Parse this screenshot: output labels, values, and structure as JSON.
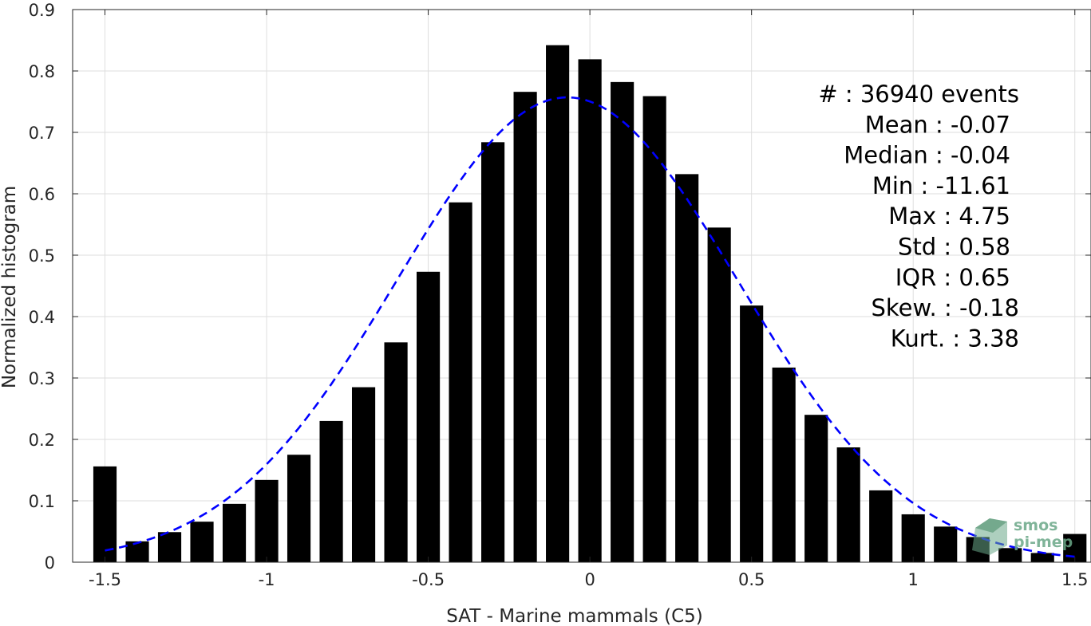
{
  "chart_data": {
    "type": "bar",
    "xlabel": "SAT - Marine mammals (C5)",
    "ylabel": "Normalized histogram",
    "xlim": [
      -1.6,
      1.55
    ],
    "ylim": [
      0,
      0.9
    ],
    "grid": true,
    "x_ticks": [
      "-1.5",
      "-1",
      "-0.5",
      "0",
      "0.5",
      "1",
      "1.5"
    ],
    "x_tick_values": [
      -1.5,
      -1,
      -0.5,
      0,
      0.5,
      1,
      1.5
    ],
    "y_ticks": [
      "0",
      "0.1",
      "0.2",
      "0.3",
      "0.4",
      "0.5",
      "0.6",
      "0.7",
      "0.8",
      "0.9"
    ],
    "y_tick_values": [
      0,
      0.1,
      0.2,
      0.3,
      0.4,
      0.5,
      0.6,
      0.7,
      0.8,
      0.9
    ],
    "bar_color": "#000000",
    "bars": {
      "x": [
        -1.5,
        -1.4,
        -1.3,
        -1.2,
        -1.1,
        -1.0,
        -0.9,
        -0.8,
        -0.7,
        -0.6,
        -0.5,
        -0.4,
        -0.3,
        -0.2,
        -0.1,
        0.0,
        0.1,
        0.2,
        0.3,
        0.4,
        0.5,
        0.6,
        0.7,
        0.8,
        0.9,
        1.0,
        1.1,
        1.2,
        1.3,
        1.4,
        1.5
      ],
      "values": [
        0.156,
        0.034,
        0.049,
        0.066,
        0.095,
        0.134,
        0.175,
        0.23,
        0.285,
        0.358,
        0.473,
        0.586,
        0.684,
        0.766,
        0.842,
        0.819,
        0.782,
        0.759,
        0.632,
        0.545,
        0.418,
        0.317,
        0.24,
        0.187,
        0.117,
        0.078,
        0.058,
        0.041,
        0.023,
        0.015,
        0.046
      ],
      "width": 0.072
    },
    "fit": {
      "type": "normal",
      "style": "dashed",
      "color": "#0000ff",
      "mean": -0.07,
      "std": 0.527,
      "peak": 0.757,
      "x_range": [
        -1.5,
        1.5
      ]
    },
    "stats_lines": [
      "#  : 36940 events",
      "Mean : -0.07",
      "Median : -0.04",
      "Min : -11.61",
      "Max : 4.75",
      "Std : 0.58",
      "IQR : 0.65",
      "Skew. : -0.18",
      "Kurt. : 3.38"
    ],
    "logo": {
      "line1": "smos",
      "line2": "pi-mep",
      "color": "#6aa888"
    }
  }
}
